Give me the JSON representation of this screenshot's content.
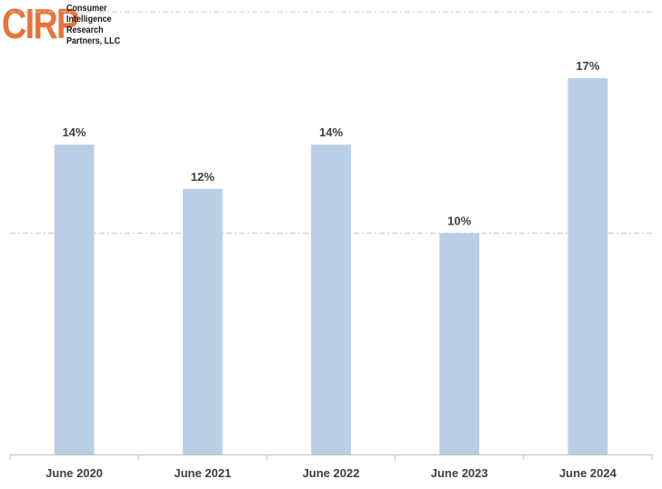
{
  "logo": {
    "mark": "CIRP",
    "lines": [
      "Consumer",
      "Intelligence",
      "Research",
      "Partners, LLC"
    ]
  },
  "colors": {
    "bar": "#b8cfe6",
    "label": "#404040",
    "grid": "#c8c8c8",
    "axis": "#bfbfbf",
    "logo_orange": "#e8733a"
  },
  "chart_data": {
    "type": "bar",
    "categories": [
      "June 2020",
      "June 2021",
      "June 2022",
      "June 2023",
      "June 2024"
    ],
    "values": [
      14,
      12,
      14,
      10,
      17
    ],
    "data_labels": [
      "14%",
      "12%",
      "14%",
      "10%",
      "17%"
    ],
    "ylim": [
      0,
      20
    ],
    "gridlines": [
      10,
      20
    ],
    "grid": true,
    "legend": "none"
  }
}
